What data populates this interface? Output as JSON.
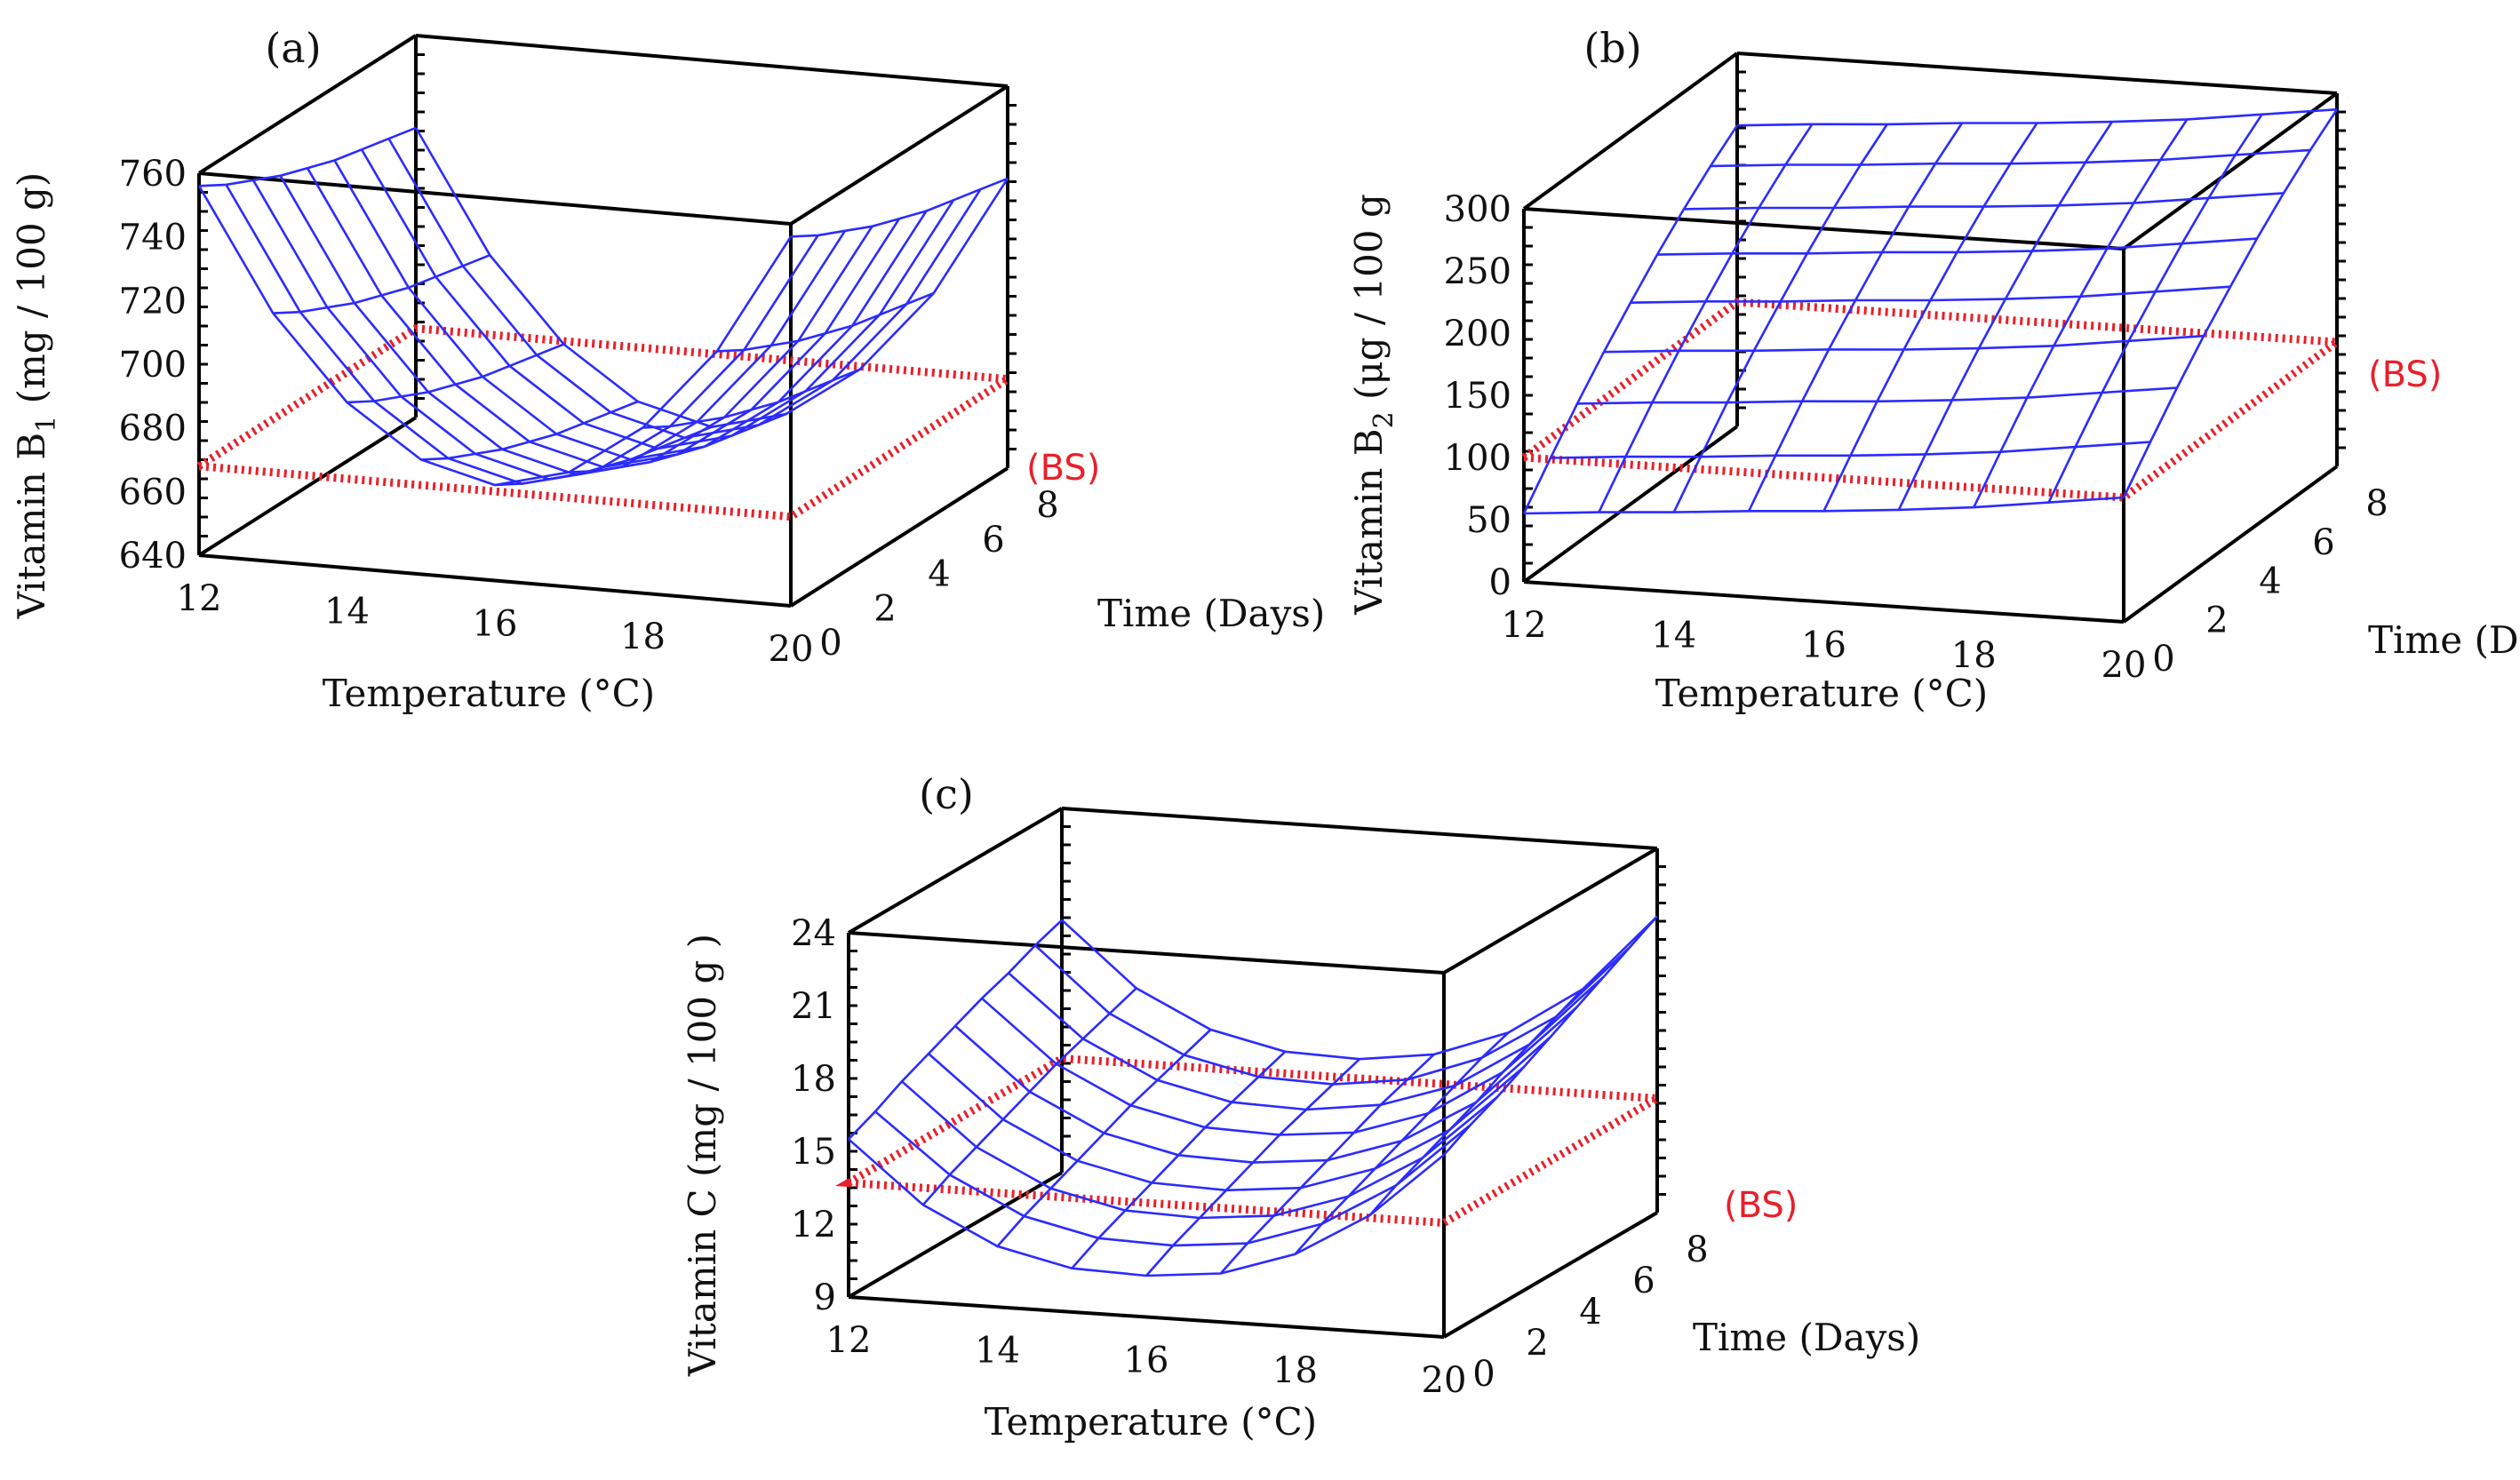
{
  "figure": "Response surface plots of vitamin content versus temperature and storage time",
  "chart_data": [
    {
      "id": "a",
      "type": "surface3d",
      "panel_label": "(a)",
      "title": "",
      "zlabel": "Vitamin B",
      "zlabel_sub": "1",
      "zlabel_unit": "(mg / 100 g)",
      "xlabel": "Temperature (°C)",
      "ylabel": "Time (Days)",
      "xticks": [
        "12",
        "14",
        "16",
        "18",
        "20"
      ],
      "yticks": [
        "0",
        "2",
        "4",
        "6",
        "8"
      ],
      "zticks": [
        "640",
        "660",
        "680",
        "700",
        "720",
        "740",
        "760"
      ],
      "xlim": [
        12,
        20
      ],
      "ylim": [
        0,
        8
      ],
      "zlim": [
        640,
        760
      ],
      "bs_label": "(BS)",
      "bs_value": 668,
      "temperature_grid": [
        12,
        13,
        14,
        15,
        16,
        17,
        18,
        19,
        20
      ],
      "time_grid": [
        0,
        1,
        2,
        3,
        4,
        5,
        6,
        7,
        8
      ],
      "vitamin_values": [
        [
          756,
          718,
          692,
          676,
          670,
          676,
          692,
          718,
          756
        ],
        [
          751,
          713,
          687,
          671,
          665,
          671,
          687,
          713,
          751
        ],
        [
          747,
          709,
          683,
          667,
          661,
          667,
          683,
          709,
          747
        ],
        [
          743,
          705,
          679,
          663,
          657,
          663,
          679,
          705,
          743
        ],
        [
          740,
          702,
          676,
          660,
          654,
          660,
          676,
          702,
          740
        ],
        [
          737,
          699,
          673,
          657,
          651,
          657,
          673,
          699,
          737
        ],
        [
          735,
          697,
          671,
          655,
          649,
          655,
          671,
          697,
          735
        ],
        [
          733,
          695,
          669,
          653,
          647,
          653,
          669,
          695,
          733
        ],
        [
          731,
          693,
          667,
          651,
          645,
          651,
          667,
          693,
          731
        ]
      ]
    },
    {
      "id": "b",
      "type": "surface3d",
      "panel_label": "(b)",
      "title": "",
      "zlabel": "Vitamin B",
      "zlabel_sub": "2",
      "zlabel_unit": "(μg / 100 g",
      "xlabel": "Temperature (°C)",
      "ylabel": "Time (Days)",
      "xticks": [
        "12",
        "14",
        "16",
        "18",
        "20"
      ],
      "yticks": [
        "0",
        "2",
        "4",
        "6",
        "8"
      ],
      "zticks": [
        "0",
        "50",
        "100",
        "150",
        "200",
        "250",
        "300"
      ],
      "xlim": [
        12,
        20
      ],
      "ylim": [
        0,
        8
      ],
      "zlim": [
        0,
        300
      ],
      "bs_label": "(BS)",
      "bs_value": 100,
      "temperature_grid": [
        12,
        13,
        14,
        15,
        16,
        17,
        18,
        19,
        20
      ],
      "time_grid": [
        0,
        1,
        2,
        3,
        4,
        5,
        6,
        7,
        8
      ],
      "vitamin_values": [
        [
          55,
          60,
          64,
          69,
          73,
          78,
          84,
          92,
          100
        ],
        [
          84,
          89,
          93,
          98,
          102,
          107,
          113,
          121,
          129
        ],
        [
          112,
          117,
          121,
          126,
          130,
          135,
          141,
          149,
          157
        ],
        [
          138,
          143,
          147,
          152,
          156,
          161,
          167,
          175,
          183
        ],
        [
          162,
          167,
          171,
          176,
          180,
          185,
          191,
          199,
          207
        ],
        [
          185,
          190,
          194,
          199,
          203,
          208,
          214,
          222,
          230
        ],
        [
          206,
          211,
          215,
          220,
          224,
          229,
          235,
          243,
          251
        ],
        [
          225,
          230,
          234,
          239,
          243,
          248,
          254,
          262,
          270
        ],
        [
          242,
          247,
          251,
          256,
          260,
          265,
          271,
          279,
          287
        ]
      ]
    },
    {
      "id": "c",
      "type": "surface3d",
      "panel_label": "(c)",
      "title": "",
      "zlabel": "Vitamin C (mg / 100 g )",
      "zlabel_sub": "",
      "zlabel_unit": "",
      "xlabel": "Temperature (°C)",
      "ylabel": "Time (Days)",
      "xticks": [
        "12",
        "14",
        "16",
        "18",
        "20"
      ],
      "yticks": [
        "0",
        "2",
        "4",
        "6",
        "8"
      ],
      "zticks": [
        "9",
        "12",
        "15",
        "18",
        "21",
        "24"
      ],
      "xlim": [
        12,
        20
      ],
      "ylim": [
        0,
        8
      ],
      "zlim": [
        9,
        24
      ],
      "bs_label": "(BS)",
      "bs_value": 13.7,
      "temperature_grid": [
        12,
        13,
        14,
        15,
        16,
        17,
        18,
        19,
        20
      ],
      "time_grid": [
        0,
        1,
        2,
        3,
        4,
        5,
        6,
        7,
        8
      ],
      "vitamin_values": [
        [
          15.5,
          13.0,
          11.5,
          10.8,
          10.7,
          11.0,
          12.0,
          13.8,
          16.5
        ],
        [
          16.0,
          13.6,
          12.1,
          11.4,
          11.3,
          11.6,
          12.6,
          14.4,
          17.1
        ],
        [
          16.6,
          14.1,
          12.6,
          11.9,
          11.8,
          12.1,
          13.1,
          14.9,
          17.6
        ],
        [
          17.1,
          14.6,
          13.1,
          12.4,
          12.3,
          12.6,
          13.6,
          15.4,
          18.2
        ],
        [
          17.6,
          15.1,
          13.6,
          12.9,
          12.8,
          13.1,
          14.1,
          15.9,
          18.8
        ],
        [
          18.1,
          15.6,
          14.1,
          13.4,
          13.3,
          13.6,
          14.6,
          16.5,
          19.4
        ],
        [
          18.5,
          16.0,
          14.5,
          13.8,
          13.7,
          14.1,
          15.1,
          17.0,
          20.0
        ],
        [
          19.0,
          16.4,
          14.9,
          14.2,
          14.1,
          14.5,
          15.6,
          17.5,
          20.6
        ],
        [
          19.4,
          16.8,
          15.3,
          14.6,
          14.5,
          14.9,
          16.0,
          18.0,
          21.2
        ]
      ]
    }
  ]
}
